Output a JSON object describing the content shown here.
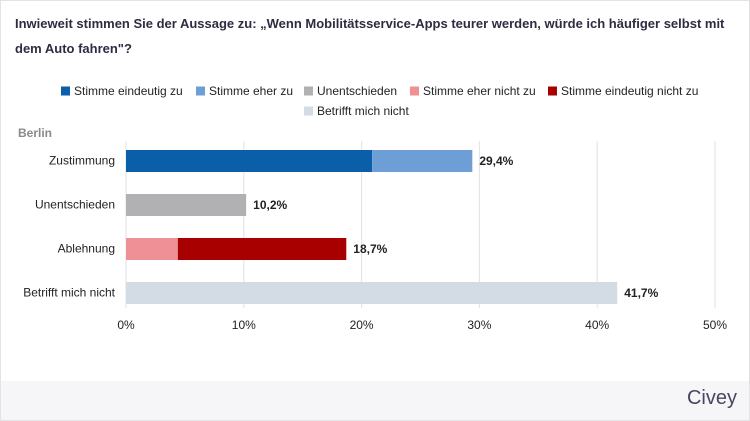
{
  "chart_data": {
    "type": "bar",
    "orientation": "horizontal",
    "stacked": true,
    "title": "Inwieweit stimmen Sie der Aussage zu: „Wenn Mobilitätsservice-Apps teurer werden, würde ich häufiger selbst mit dem Auto fahren\"?",
    "group_label": "Berlin",
    "categories": [
      "Zustimmung",
      "Unentschieden",
      "Ablehnung",
      "Betrifft mich nicht"
    ],
    "series": [
      {
        "name": "Stimme eindeutig zu",
        "color": "#0b5ea8",
        "values": [
          20.9,
          null,
          null,
          null
        ]
      },
      {
        "name": "Stimme eher zu",
        "color": "#6d9fd6",
        "values": [
          8.5,
          null,
          null,
          null
        ]
      },
      {
        "name": "Unentschieden",
        "color": "#b1b1b4",
        "values": [
          null,
          10.2,
          null,
          null
        ]
      },
      {
        "name": "Stimme eher nicht zu",
        "color": "#ef9096",
        "values": [
          null,
          null,
          4.4,
          null
        ]
      },
      {
        "name": "Stimme eindeutig nicht zu",
        "color": "#a80000",
        "values": [
          null,
          null,
          14.3,
          null
        ]
      },
      {
        "name": "Betrifft mich nicht",
        "color": "#d3dbe4",
        "values": [
          null,
          null,
          null,
          41.7
        ]
      }
    ],
    "totals": [
      29.4,
      10.2,
      18.7,
      41.7
    ],
    "total_labels": [
      "29,4%",
      "10,2%",
      "18,7%",
      "41,7%"
    ],
    "xlim": [
      0,
      50
    ],
    "xticks": [
      {
        "value": 0,
        "label": "0%"
      },
      {
        "value": 10,
        "label": "10%"
      },
      {
        "value": 20,
        "label": "20%"
      },
      {
        "value": 30,
        "label": "30%"
      },
      {
        "value": 40,
        "label": "40%"
      },
      {
        "value": 50,
        "label": "50%"
      }
    ],
    "grid": true
  },
  "footer": {
    "brand": "Civey"
  }
}
